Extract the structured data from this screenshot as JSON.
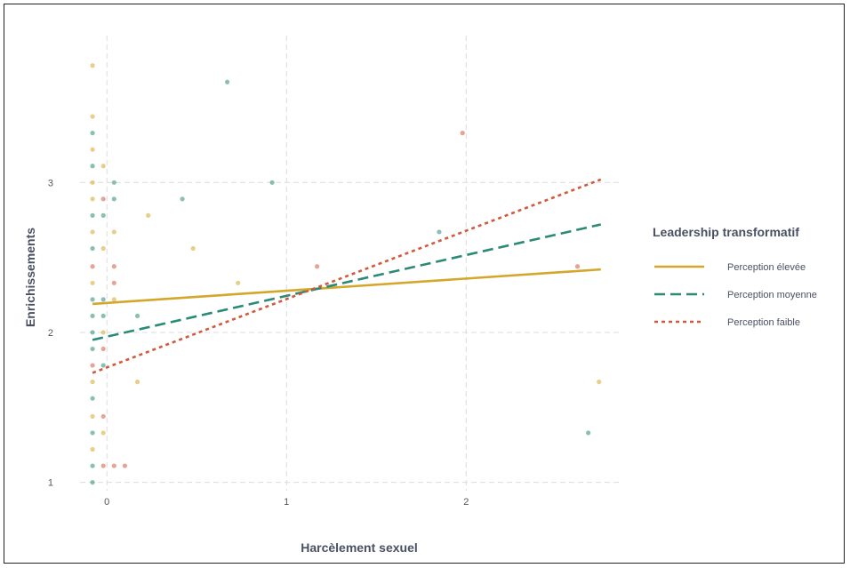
{
  "chart_data": {
    "type": "scatter",
    "title": "",
    "xlabel": "Harcèlement sexuel",
    "ylabel": "Enrichissements",
    "xlim": [
      -0.12,
      2.87
    ],
    "ylim": [
      0.98,
      3.98
    ],
    "x_ticks": [
      {
        "value": 0,
        "label": "0"
      },
      {
        "value": 1,
        "label": "1"
      },
      {
        "value": 2,
        "label": "2"
      }
    ],
    "y_ticks": [
      {
        "value": 1,
        "label": "1"
      },
      {
        "value": 2,
        "label": "2"
      },
      {
        "value": 3,
        "label": "3"
      }
    ],
    "grid": true,
    "legend": {
      "title": "Leadership transformatif",
      "position": "right",
      "entries": [
        {
          "label": "Perception élevée",
          "color": "#d4a62a",
          "dash": "solid"
        },
        {
          "label": "Perception moyenne",
          "color": "#2a8a76",
          "dash": "long-dash"
        },
        {
          "label": "Perception faible",
          "color": "#d05a3e",
          "dash": "dotted"
        }
      ]
    },
    "lines": [
      {
        "label": "Perception élevée",
        "x": [
          -0.08,
          2.75
        ],
        "y": [
          2.19,
          2.42
        ],
        "color": "#d4a62a",
        "dash": "solid"
      },
      {
        "label": "Perception moyenne",
        "x": [
          -0.08,
          2.75
        ],
        "y": [
          1.95,
          2.72
        ],
        "color": "#2a8a76",
        "dash": "long-dash"
      },
      {
        "label": "Perception faible",
        "x": [
          -0.08,
          2.75
        ],
        "y": [
          1.73,
          3.02
        ],
        "color": "#d05a3e",
        "dash": "dotted"
      }
    ],
    "points": [
      {
        "x": -0.08,
        "y": 3.78,
        "g": 0
      },
      {
        "x": -0.08,
        "y": 3.44,
        "g": 0
      },
      {
        "x": -0.08,
        "y": 3.33,
        "g": 1
      },
      {
        "x": -0.08,
        "y": 3.22,
        "g": 0
      },
      {
        "x": -0.08,
        "y": 3.11,
        "g": 1
      },
      {
        "x": -0.08,
        "y": 3.0,
        "g": 0
      },
      {
        "x": -0.08,
        "y": 2.89,
        "g": 0
      },
      {
        "x": -0.08,
        "y": 2.78,
        "g": 1
      },
      {
        "x": -0.08,
        "y": 2.67,
        "g": 0
      },
      {
        "x": -0.08,
        "y": 2.56,
        "g": 1
      },
      {
        "x": -0.08,
        "y": 2.44,
        "g": 2
      },
      {
        "x": -0.08,
        "y": 2.33,
        "g": 0
      },
      {
        "x": -0.08,
        "y": 2.22,
        "g": 1
      },
      {
        "x": -0.08,
        "y": 2.11,
        "g": 1
      },
      {
        "x": -0.08,
        "y": 2.0,
        "g": 1
      },
      {
        "x": -0.08,
        "y": 1.89,
        "g": 1
      },
      {
        "x": -0.08,
        "y": 1.78,
        "g": 2
      },
      {
        "x": -0.08,
        "y": 1.67,
        "g": 0
      },
      {
        "x": -0.08,
        "y": 1.56,
        "g": 1
      },
      {
        "x": -0.08,
        "y": 1.44,
        "g": 0
      },
      {
        "x": -0.08,
        "y": 1.33,
        "g": 1
      },
      {
        "x": -0.08,
        "y": 1.22,
        "g": 0
      },
      {
        "x": -0.08,
        "y": 1.11,
        "g": 1
      },
      {
        "x": -0.08,
        "y": 1.0,
        "g": 1
      },
      {
        "x": -0.02,
        "y": 3.11,
        "g": 0
      },
      {
        "x": -0.02,
        "y": 2.89,
        "g": 2
      },
      {
        "x": -0.02,
        "y": 2.78,
        "g": 1
      },
      {
        "x": -0.02,
        "y": 2.56,
        "g": 0
      },
      {
        "x": -0.02,
        "y": 2.22,
        "g": 1
      },
      {
        "x": -0.02,
        "y": 2.11,
        "g": 1
      },
      {
        "x": -0.02,
        "y": 2.0,
        "g": 0
      },
      {
        "x": -0.02,
        "y": 1.89,
        "g": 2
      },
      {
        "x": -0.02,
        "y": 1.78,
        "g": 1
      },
      {
        "x": -0.02,
        "y": 1.44,
        "g": 2
      },
      {
        "x": -0.02,
        "y": 1.33,
        "g": 0
      },
      {
        "x": -0.02,
        "y": 1.11,
        "g": 2
      },
      {
        "x": 0.04,
        "y": 3.0,
        "g": 1
      },
      {
        "x": 0.04,
        "y": 2.89,
        "g": 1
      },
      {
        "x": 0.04,
        "y": 2.67,
        "g": 0
      },
      {
        "x": 0.04,
        "y": 2.44,
        "g": 2
      },
      {
        "x": 0.04,
        "y": 2.33,
        "g": 2
      },
      {
        "x": 0.04,
        "y": 2.22,
        "g": 0
      },
      {
        "x": 0.04,
        "y": 1.11,
        "g": 2
      },
      {
        "x": 0.1,
        "y": 1.11,
        "g": 2
      },
      {
        "x": 0.17,
        "y": 2.11,
        "g": 1
      },
      {
        "x": 0.17,
        "y": 1.67,
        "g": 0
      },
      {
        "x": 0.23,
        "y": 2.78,
        "g": 0
      },
      {
        "x": 0.42,
        "y": 2.89,
        "g": 1
      },
      {
        "x": 0.48,
        "y": 2.56,
        "g": 0
      },
      {
        "x": 0.67,
        "y": 3.67,
        "g": 1
      },
      {
        "x": 0.73,
        "y": 2.33,
        "g": 0
      },
      {
        "x": 0.92,
        "y": 3.0,
        "g": 1
      },
      {
        "x": 1.17,
        "y": 2.44,
        "g": 2
      },
      {
        "x": 1.85,
        "y": 2.67,
        "g": 1
      },
      {
        "x": 1.98,
        "y": 3.33,
        "g": 2
      },
      {
        "x": 2.62,
        "y": 2.44,
        "g": 2
      },
      {
        "x": 2.68,
        "y": 1.33,
        "g": 1
      },
      {
        "x": 2.74,
        "y": 1.67,
        "g": 0
      }
    ]
  }
}
